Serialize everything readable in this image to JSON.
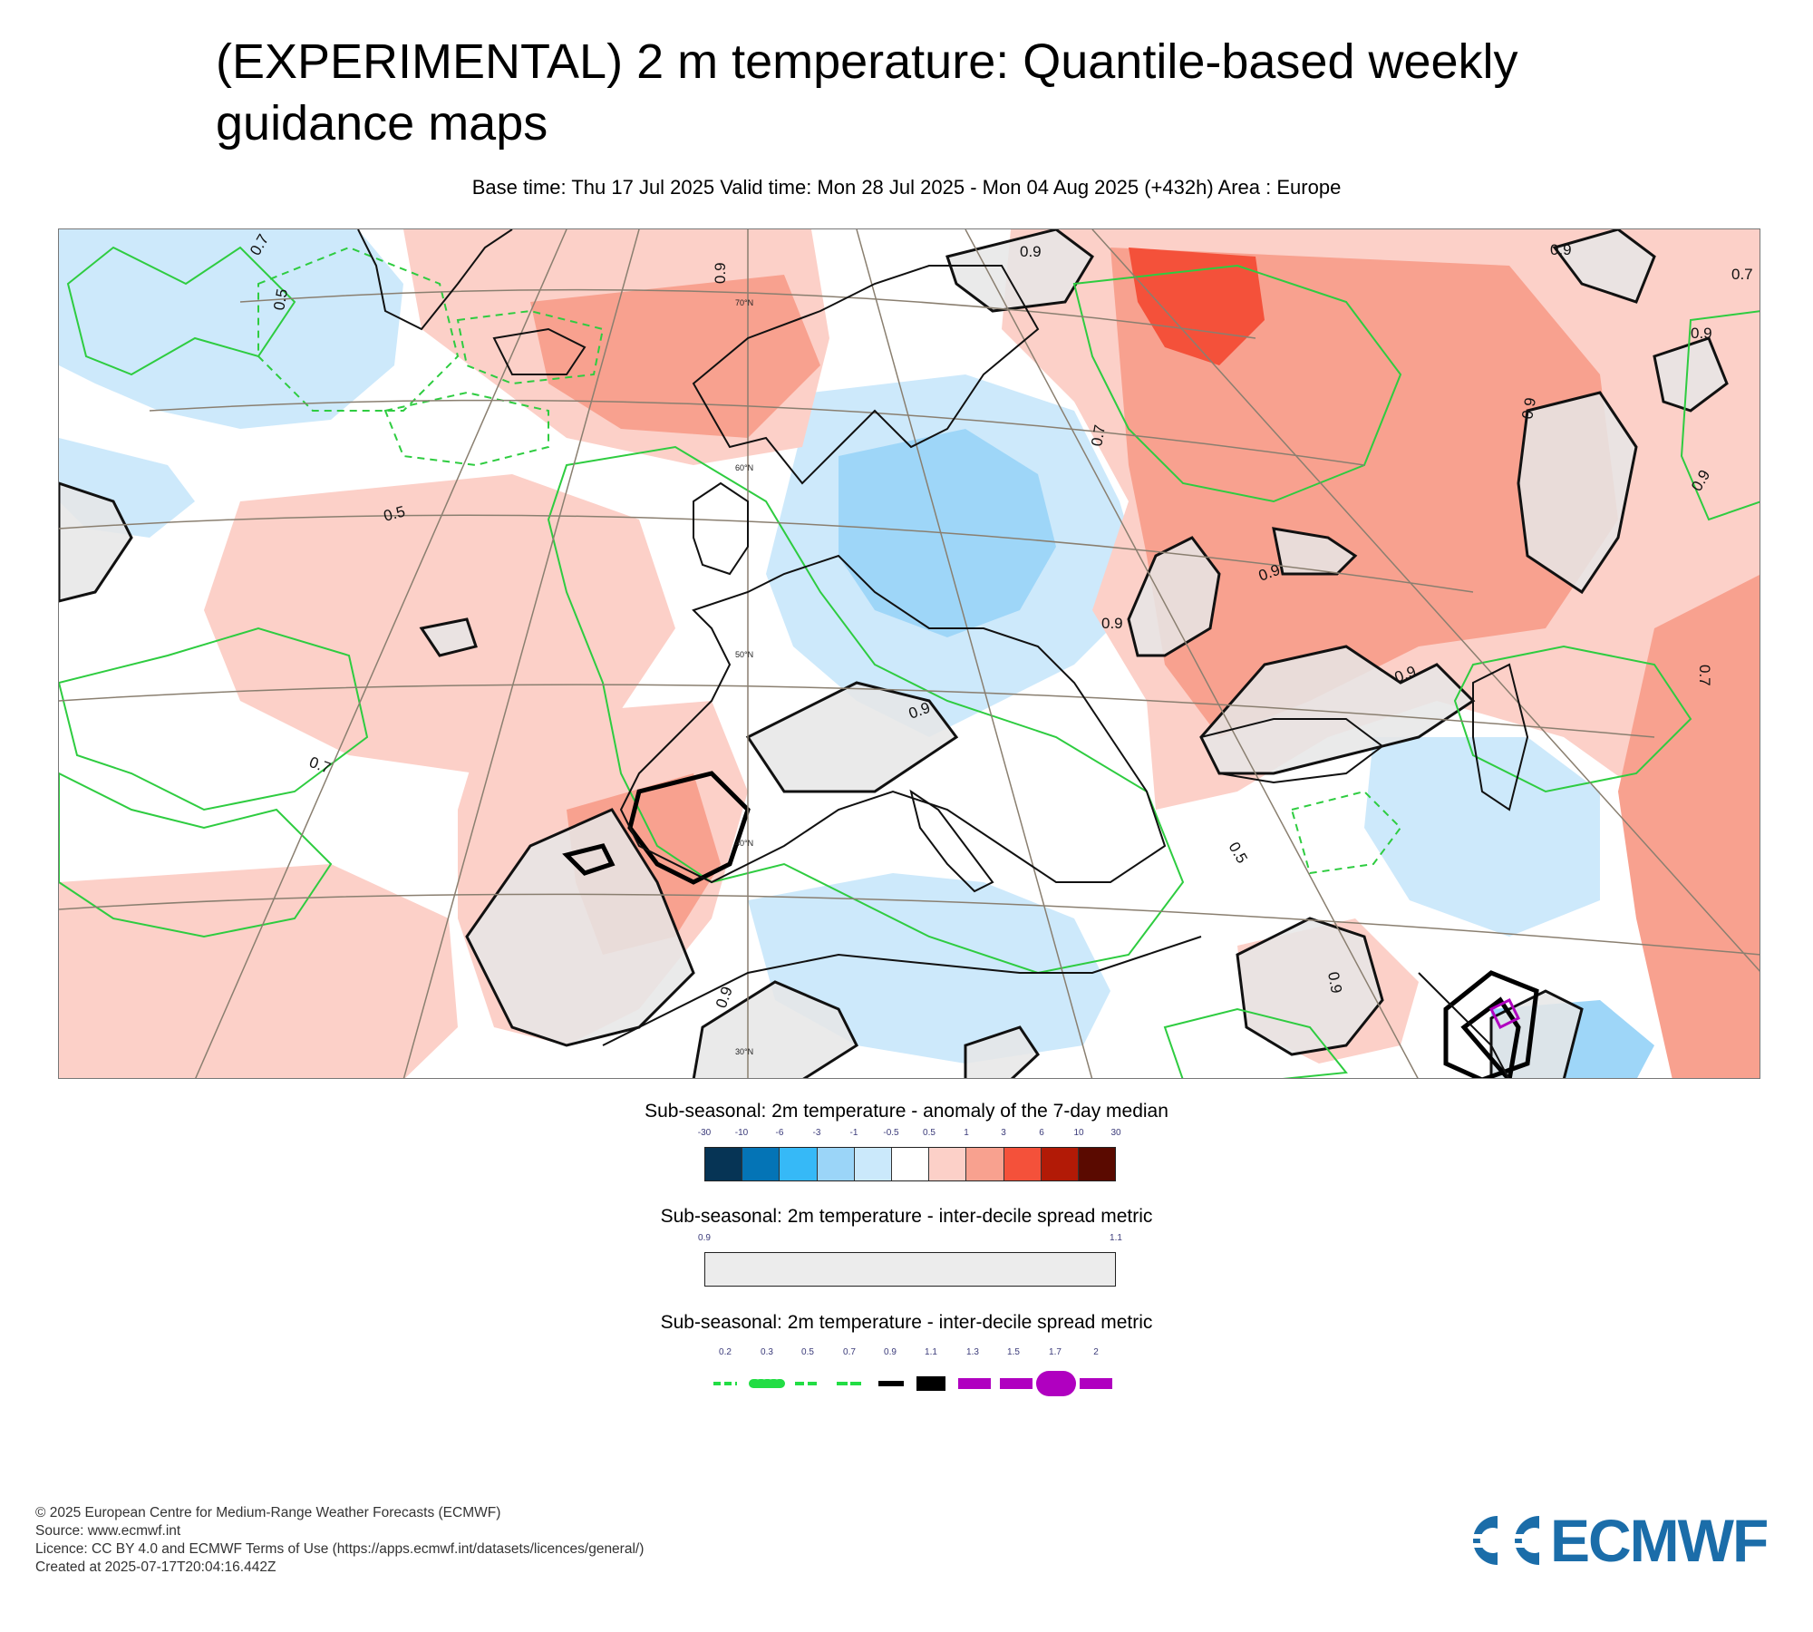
{
  "header": {
    "title": "(EXPERIMENTAL) 2 m temperature: Quantile-based weekly guidance maps",
    "subtitle": "Base time: Thu 17 Jul 2025 Valid time: Mon 28 Jul 2025 - Mon 04 Aug 2025 (+432h) Area : Europe"
  },
  "map": {
    "area": "Europe",
    "latitude_labels": [
      "70°N",
      "60°N",
      "50°N",
      "40°N",
      "30°N"
    ],
    "contour_labels": [
      "0.7",
      "0.5",
      "0.9",
      "0.9",
      "0.7",
      "0.9",
      "0.7",
      "0.9",
      "0.9",
      "0.5",
      "0.9",
      "0.9",
      "0.7",
      "0.9",
      "0.9",
      "0.9",
      "0.5",
      "0.9",
      "0.7",
      "0.9"
    ],
    "colors": {
      "warm_light": "#fcd0c8",
      "warm": "#f8a18f",
      "warm_strong": "#f4513a",
      "cool_light": "#cde9fb",
      "cool": "#9ed6f8",
      "spread_fill": "#e6e6e6",
      "green_contour": "#2ecc40",
      "black_contour": "#111111",
      "magenta_contour": "#b000c0",
      "coast": "#111111",
      "graticule": "#8a7f70"
    }
  },
  "legend_anomaly": {
    "title": "Sub-seasonal: 2m temperature - anomaly of the 7-day median",
    "ticks": [
      "-30",
      "-10",
      "-6",
      "-3",
      "-1",
      "-0.5",
      "0.5",
      "1",
      "3",
      "6",
      "10",
      "30"
    ],
    "colors": [
      "#063455",
      "#0474b6",
      "#36b9f7",
      "#9bd5f8",
      "#cbe9fb",
      "#ffffff",
      "#fcd0c8",
      "#f8a18f",
      "#f4513a",
      "#b21a06",
      "#5a0a00"
    ]
  },
  "legend_spread": {
    "title": "Sub-seasonal: 2m temperature - inter-decile spread metric",
    "ticks": [
      "0.9",
      "1.1"
    ],
    "fill": "#ececec"
  },
  "legend_contours": {
    "title": "Sub-seasonal: 2m temperature - inter-decile spread metric",
    "ticks": [
      "0.2",
      "0.3",
      "0.5",
      "0.7",
      "0.9",
      "1.1",
      "1.3",
      "1.5",
      "1.7",
      "2"
    ],
    "colors": [
      "#22dd44",
      "#22dd44",
      "#22dd44",
      "#22dd44",
      "#000000",
      "#000000",
      "#b000c0",
      "#b000c0",
      "#b000c0",
      "#b000c0"
    ]
  },
  "footer": {
    "copyright": "© 2025 European Centre for Medium-Range Weather Forecasts (ECMWF)",
    "source": "Source: www.ecmwf.int",
    "licence": "Licence: CC BY 4.0 and ECMWF Terms of Use (https://apps.ecmwf.int/datasets/licences/general/)",
    "created": "Created at 2025-07-17T20:04:16.442Z"
  },
  "logo": {
    "text": "ECMWF",
    "color": "#1b6da9"
  }
}
